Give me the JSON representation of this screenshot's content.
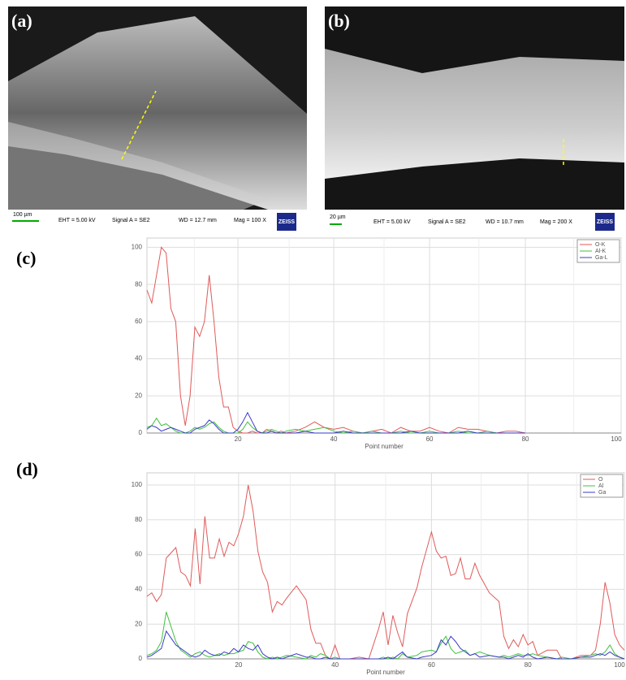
{
  "images": [
    {
      "label": "(a)",
      "scale_bar": "100 µm",
      "eht": "EHT = 5.00 kV",
      "signal": "Signal A = SE2",
      "wd": "WD = 12.7 mm",
      "mag": "Mag =  100 X",
      "logo": "ZEISS"
    },
    {
      "label": "(b)",
      "scale_bar": "20 µm",
      "eht": "EHT = 5.00 kV",
      "signal": "Signal A = SE2",
      "wd": "WD = 10.7 mm",
      "mag": "Mag =  200 X",
      "logo": "ZEISS"
    }
  ],
  "chart_data": [
    {
      "type": "line",
      "panel_label": "(c)",
      "xlabel": "Point number",
      "xlim": [
        1,
        100
      ],
      "ylim": [
        0,
        105
      ],
      "xticks": [
        20,
        40,
        60,
        80,
        100
      ],
      "yticks": [
        0,
        20,
        40,
        60,
        80,
        100
      ],
      "grid": true,
      "legend": "upper right",
      "x": [
        1,
        2,
        3,
        4,
        5,
        6,
        7,
        8,
        9,
        10,
        11,
        12,
        13,
        14,
        15,
        16,
        17,
        18,
        19,
        20,
        21,
        22,
        23,
        24,
        25,
        26,
        27,
        28,
        29,
        30,
        32,
        34,
        36,
        38,
        40,
        42,
        44,
        46,
        48,
        50,
        52,
        54,
        56,
        58,
        60,
        62,
        64,
        66,
        68,
        70,
        72,
        74,
        76,
        78,
        80
      ],
      "series": [
        {
          "name": "O-K",
          "color": "#e05a5a",
          "values": [
            77,
            70,
            85,
            100,
            97,
            67,
            60,
            20,
            4,
            20,
            57,
            52,
            60,
            85,
            60,
            30,
            14,
            14,
            3,
            1,
            0,
            0,
            1,
            0,
            0,
            2,
            1,
            0,
            1,
            0,
            1,
            3,
            6,
            3,
            2,
            3,
            1,
            0,
            1,
            2,
            0,
            3,
            1,
            1,
            3,
            1,
            0,
            3,
            2,
            2,
            1,
            0,
            1,
            1,
            0
          ]
        },
        {
          "name": "Al-K",
          "color": "#40c040",
          "values": [
            3,
            4,
            8,
            4,
            5,
            3,
            1,
            0,
            0,
            1,
            3,
            2,
            3,
            5,
            6,
            3,
            1,
            0,
            0,
            0,
            2,
            6,
            3,
            1,
            0,
            1,
            2,
            1,
            0,
            1,
            2,
            1,
            2,
            3,
            1,
            0,
            1,
            0,
            1,
            0,
            0,
            1,
            0,
            0,
            1,
            0,
            0,
            1,
            0,
            0,
            1,
            0,
            0,
            0,
            0
          ]
        },
        {
          "name": "Ga-L",
          "color": "#3a3ac8",
          "values": [
            2,
            4,
            3,
            1,
            2,
            3,
            2,
            1,
            0,
            0,
            2,
            3,
            4,
            7,
            5,
            2,
            0,
            0,
            0,
            2,
            6,
            11,
            6,
            1,
            0,
            0,
            1,
            0,
            0,
            0,
            0,
            1,
            0,
            0,
            0,
            1,
            0,
            0,
            0,
            0,
            0,
            0,
            1,
            0,
            0,
            0,
            0,
            0,
            1,
            0,
            0,
            0,
            0,
            0,
            0
          ]
        }
      ]
    },
    {
      "type": "line",
      "panel_label": "(d)",
      "xlabel": "Point number",
      "xlim": [
        1,
        100
      ],
      "ylim": [
        0,
        107
      ],
      "xticks": [
        20,
        40,
        60,
        80,
        100
      ],
      "yticks": [
        0,
        20,
        40,
        60,
        80,
        100
      ],
      "grid": true,
      "legend": "upper right",
      "x": [
        1,
        2,
        3,
        4,
        5,
        7,
        8,
        9,
        10,
        11,
        12,
        13,
        14,
        15,
        16,
        17,
        18,
        19,
        20,
        21,
        22,
        23,
        24,
        25,
        26,
        27,
        28,
        29,
        30,
        32,
        34,
        35,
        36,
        37,
        38,
        39,
        40,
        41,
        43,
        45,
        47,
        49,
        50,
        51,
        52,
        53,
        54,
        55,
        57,
        58,
        60,
        61,
        62,
        63,
        64,
        65,
        66,
        67,
        68,
        69,
        70,
        72,
        74,
        75,
        76,
        77,
        78,
        79,
        80,
        81,
        82,
        84,
        86,
        87,
        89,
        91,
        93,
        94,
        95,
        96,
        97,
        98,
        99,
        100
      ],
      "series": [
        {
          "name": "O",
          "color": "#e05a5a",
          "values": [
            36,
            38,
            33,
            37,
            58,
            64,
            50,
            48,
            42,
            75,
            43,
            82,
            58,
            58,
            69,
            59,
            67,
            65,
            72,
            82,
            100,
            85,
            62,
            50,
            44,
            27,
            33,
            31,
            35,
            42,
            34,
            17,
            9,
            9,
            2,
            0,
            8,
            0,
            0,
            1,
            0,
            17,
            27,
            8,
            25,
            15,
            7,
            26,
            41,
            53,
            73,
            62,
            58,
            59,
            48,
            49,
            58,
            46,
            46,
            55,
            48,
            38,
            33,
            13,
            6,
            11,
            7,
            14,
            8,
            10,
            2,
            5,
            5,
            0,
            0,
            2,
            2,
            5,
            20,
            44,
            32,
            14,
            8,
            5
          ]
        },
        {
          "name": "Al",
          "color": "#40c040",
          "values": [
            2,
            3,
            5,
            10,
            27,
            10,
            5,
            3,
            1,
            3,
            4,
            2,
            1,
            2,
            3,
            2,
            3,
            3,
            4,
            5,
            10,
            9,
            4,
            1,
            0,
            1,
            0,
            1,
            2,
            1,
            0,
            2,
            1,
            3,
            2,
            0,
            1,
            0,
            0,
            0,
            0,
            0,
            1,
            0,
            1,
            0,
            3,
            1,
            2,
            4,
            5,
            4,
            9,
            13,
            6,
            3,
            4,
            5,
            2,
            3,
            4,
            2,
            1,
            2,
            1,
            2,
            3,
            2,
            2,
            3,
            2,
            1,
            0,
            1,
            0,
            1,
            2,
            3,
            2,
            4,
            8,
            3,
            1,
            0
          ]
        },
        {
          "name": "Ga",
          "color": "#3a3ac8",
          "values": [
            1,
            2,
            4,
            6,
            16,
            8,
            6,
            4,
            2,
            1,
            2,
            5,
            3,
            2,
            2,
            4,
            3,
            6,
            4,
            8,
            6,
            5,
            8,
            3,
            1,
            0,
            1,
            0,
            1,
            3,
            1,
            1,
            0,
            0,
            1,
            0,
            0,
            0,
            0,
            0,
            0,
            0,
            0,
            1,
            0,
            2,
            4,
            1,
            0,
            1,
            2,
            4,
            11,
            8,
            13,
            10,
            6,
            4,
            2,
            3,
            1,
            2,
            1,
            1,
            0,
            1,
            2,
            1,
            3,
            1,
            0,
            1,
            0,
            0,
            0,
            1,
            1,
            2,
            3,
            2,
            4,
            2,
            1,
            0
          ]
        }
      ]
    }
  ]
}
